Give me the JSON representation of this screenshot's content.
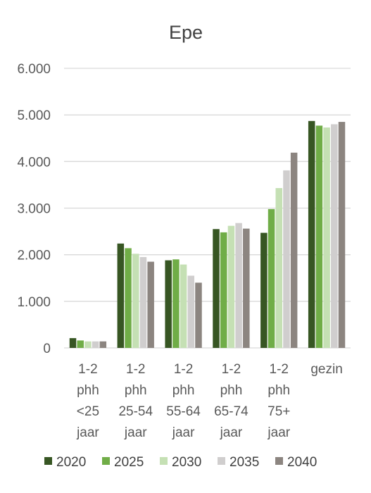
{
  "chart_data": {
    "type": "bar",
    "title": "Epe",
    "xlabel": "",
    "ylabel": "",
    "ylim": [
      0,
      6000
    ],
    "yticks": [
      0,
      1000,
      2000,
      3000,
      4000,
      5000,
      6000
    ],
    "ytick_labels": [
      "0",
      "1.000",
      "2.000",
      "3.000",
      "4.000",
      "5.000",
      "6.000"
    ],
    "grid": true,
    "legend_position": "bottom",
    "categories": [
      [
        "1-2",
        "phh",
        "<25",
        "jaar"
      ],
      [
        "1-2",
        "phh",
        "25-54",
        "jaar"
      ],
      [
        "1-2",
        "phh",
        "55-64",
        "jaar"
      ],
      [
        "1-2",
        "phh",
        "65-74",
        "jaar"
      ],
      [
        "1-2",
        "phh",
        "75+",
        "jaar"
      ],
      [
        "gezin"
      ]
    ],
    "series": [
      {
        "name": "2020",
        "color": "#375623",
        "values": [
          210,
          2240,
          1880,
          2550,
          2470,
          4870
        ]
      },
      {
        "name": "2025",
        "color": "#70AD47",
        "values": [
          160,
          2140,
          1900,
          2480,
          2980,
          4770
        ]
      },
      {
        "name": "2030",
        "color": "#C5E0B4",
        "values": [
          140,
          2020,
          1790,
          2620,
          3430,
          4730
        ]
      },
      {
        "name": "2035",
        "color": "#D0CECE",
        "values": [
          140,
          1950,
          1550,
          2680,
          3810,
          4800
        ]
      },
      {
        "name": "2040",
        "color": "#8C8580",
        "values": [
          140,
          1850,
          1400,
          2560,
          4190,
          4850
        ]
      }
    ]
  }
}
